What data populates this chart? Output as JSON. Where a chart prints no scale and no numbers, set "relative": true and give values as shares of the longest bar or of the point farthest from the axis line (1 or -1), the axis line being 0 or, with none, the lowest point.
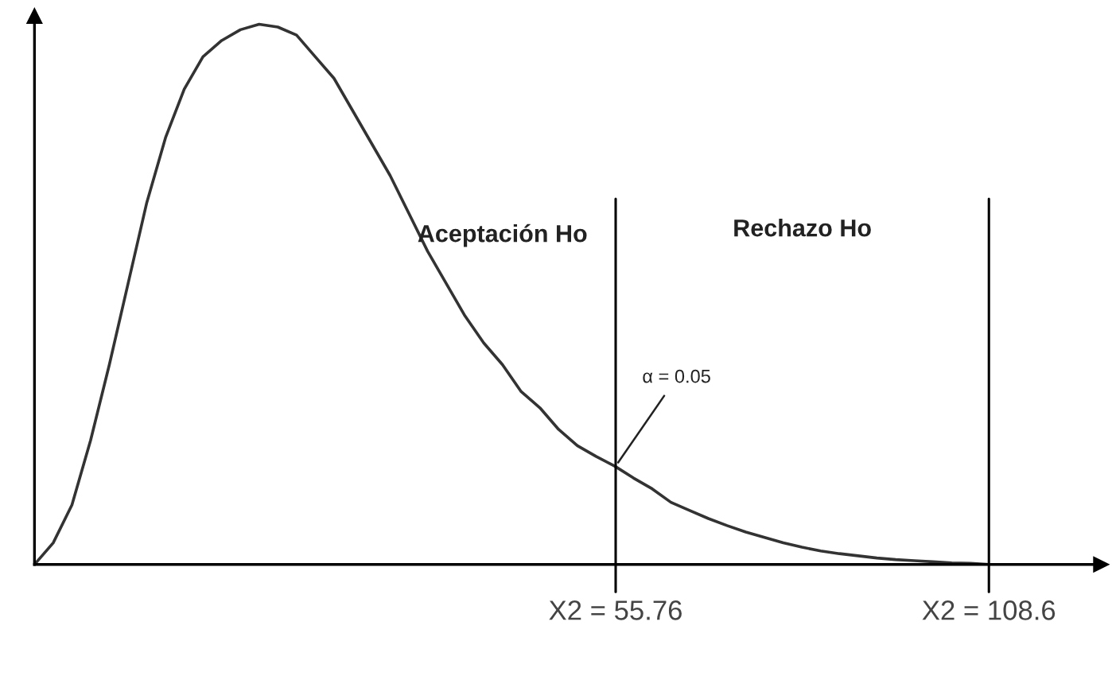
{
  "chart_data": {
    "type": "line",
    "relative": true,
    "categories": [
      null,
      null,
      null,
      null,
      null,
      null,
      null,
      null,
      null,
      null,
      null,
      null,
      null,
      null,
      null,
      null,
      null,
      null,
      null,
      null,
      null,
      null,
      null,
      null,
      null,
      null,
      null,
      null,
      null,
      null,
      null,
      null,
      null,
      null,
      null,
      null,
      null,
      null,
      null,
      null,
      null,
      null,
      null,
      null,
      null,
      null,
      null,
      null,
      null,
      null,
      null,
      null
    ],
    "series": [
      {
        "color": "#333333",
        "values": [
          0,
          0.04,
          0.11,
          0.23,
          0.37,
          0.52,
          0.67,
          0.79,
          0.88,
          0.94,
          0.97,
          0.99,
          1.0,
          0.995,
          0.98,
          0.94,
          0.9,
          0.84,
          0.78,
          0.72,
          0.65,
          0.58,
          0.52,
          0.46,
          0.41,
          0.37,
          0.32,
          0.29,
          0.25,
          0.22,
          0.2,
          0.182,
          0.16,
          0.14,
          0.115,
          0.1,
          0.085,
          0.072,
          0.06,
          0.05,
          0.04,
          0.032,
          0.025,
          0.02,
          0.016,
          0.012,
          0.009,
          0.007,
          0.005,
          0.003,
          0.002,
          0
        ]
      }
    ],
    "annotations": [
      "Aceptación Ho",
      "Rechazo Ho",
      "α = 0.05",
      "X2 = 55.76",
      "X2 = 108.6"
    ],
    "legend": false,
    "marker": "none",
    "line_style": "solid"
  }
}
